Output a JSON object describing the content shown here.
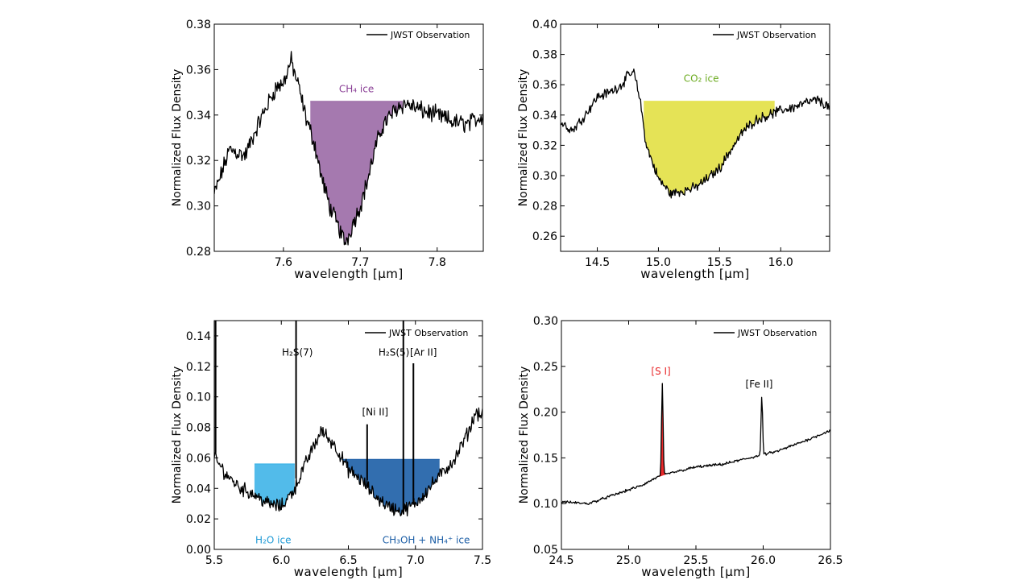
{
  "figure": {
    "legend_label": "JWST Observation",
    "xlabel": "wavelength [μm]",
    "ylabel": "Normalized Flux Density"
  },
  "chart_data": [
    {
      "type": "line",
      "panel": "top-left",
      "title": "",
      "xlabel": "wavelength [μm]",
      "ylabel": "Normalized Flux Density",
      "xlim": [
        7.51,
        7.86
      ],
      "ylim": [
        0.28,
        0.38
      ],
      "xticks": [
        7.6,
        7.7,
        7.8
      ],
      "yticks": [
        0.28,
        0.3,
        0.32,
        0.34,
        0.36,
        0.38
      ],
      "xtick_labels": [
        "7.6",
        "7.7",
        "7.8"
      ],
      "ytick_labels": [
        "0.28",
        "0.30",
        "0.32",
        "0.34",
        "0.36",
        "0.38"
      ],
      "legend": {
        "label": "JWST Observation",
        "position": "top-right"
      },
      "series": [
        {
          "name": "JWST Observation",
          "color": "#000000",
          "x": [
            7.51,
            7.53,
            7.55,
            7.57,
            7.59,
            7.6,
            7.61,
            7.62,
            7.63,
            7.64,
            7.65,
            7.66,
            7.67,
            7.675,
            7.68,
            7.685,
            7.69,
            7.7,
            7.71,
            7.72,
            7.73,
            7.74,
            7.75,
            7.76,
            7.78,
            7.8,
            7.82,
            7.84,
            7.86
          ],
          "y": [
            0.305,
            0.325,
            0.322,
            0.338,
            0.352,
            0.354,
            0.364,
            0.352,
            0.338,
            0.328,
            0.312,
            0.3,
            0.292,
            0.288,
            0.284,
            0.287,
            0.292,
            0.3,
            0.312,
            0.326,
            0.336,
            0.34,
            0.344,
            0.345,
            0.342,
            0.34,
            0.337,
            0.336,
            0.34
          ],
          "noise": 0.006
        }
      ],
      "fills": [
        {
          "label": "CH₄ ice",
          "color": "#9b6aa6",
          "text_color": "#8a3f96",
          "x_range": [
            7.635,
            7.755
          ],
          "continuum": 0.346
        }
      ],
      "annotations": [
        {
          "text": "CH₄ ice",
          "x": 7.695,
          "y": 0.35,
          "color": "#8a3f96"
        }
      ]
    },
    {
      "type": "line",
      "panel": "top-right",
      "title": "",
      "xlabel": "wavelength [μm]",
      "ylabel": "Normalized Flux Density",
      "xlim": [
        14.2,
        16.4
      ],
      "ylim": [
        0.25,
        0.4
      ],
      "xticks": [
        14.5,
        15.0,
        15.5,
        16.0
      ],
      "yticks": [
        0.26,
        0.28,
        0.3,
        0.32,
        0.34,
        0.36,
        0.38,
        0.4
      ],
      "xtick_labels": [
        "14.5",
        "15.0",
        "15.5",
        "16.0"
      ],
      "ytick_labels": [
        "0.26",
        "0.28",
        "0.30",
        "0.32",
        "0.34",
        "0.36",
        "0.38",
        "0.40"
      ],
      "legend": {
        "label": "JWST Observation",
        "position": "top-right"
      },
      "series": [
        {
          "name": "JWST Observation",
          "color": "#000000",
          "x": [
            14.2,
            14.3,
            14.4,
            14.5,
            14.6,
            14.7,
            14.75,
            14.8,
            14.85,
            14.9,
            15.0,
            15.1,
            15.2,
            15.3,
            15.4,
            15.5,
            15.6,
            15.7,
            15.8,
            15.9,
            16.0,
            16.1,
            16.2,
            16.3,
            16.4
          ],
          "y": [
            0.335,
            0.33,
            0.34,
            0.352,
            0.355,
            0.36,
            0.366,
            0.368,
            0.35,
            0.32,
            0.298,
            0.288,
            0.29,
            0.292,
            0.298,
            0.305,
            0.318,
            0.33,
            0.337,
            0.34,
            0.343,
            0.345,
            0.348,
            0.35,
            0.345
          ],
          "noise": 0.005
        }
      ],
      "fills": [
        {
          "label": "CO₂ ice",
          "color": "#e2e044",
          "text_color": "#6aaa1e",
          "x_range": [
            14.88,
            15.95
          ],
          "continuum": 0.349
        }
      ],
      "annotations": [
        {
          "text": "CO₂ ice",
          "x": 15.35,
          "y": 0.362,
          "color": "#6aaa1e"
        }
      ]
    },
    {
      "type": "line",
      "panel": "bottom-left",
      "title": "",
      "xlabel": "wavelength [μm]",
      "ylabel": "Normalized Flux Density",
      "xlim": [
        5.5,
        7.5
      ],
      "ylim": [
        0.0,
        0.15
      ],
      "xticks": [
        5.5,
        6.0,
        6.5,
        7.0,
        7.5
      ],
      "yticks": [
        0.0,
        0.02,
        0.04,
        0.06,
        0.08,
        0.1,
        0.12,
        0.14
      ],
      "xtick_labels": [
        "5.5",
        "6.0",
        "6.5",
        "7.0",
        "7.5"
      ],
      "ytick_labels": [
        "0.00",
        "0.02",
        "0.04",
        "0.06",
        "0.08",
        "0.10",
        "0.12",
        "0.14"
      ],
      "legend": {
        "label": "JWST Observation",
        "position": "top-right"
      },
      "series": [
        {
          "name": "JWST Observation",
          "color": "#000000",
          "x": [
            5.5,
            5.6,
            5.7,
            5.8,
            5.9,
            6.0,
            6.1,
            6.2,
            6.3,
            6.4,
            6.5,
            6.6,
            6.7,
            6.8,
            6.9,
            7.0,
            7.1,
            7.2,
            7.3,
            7.4,
            7.45,
            7.5
          ],
          "y": [
            0.06,
            0.048,
            0.04,
            0.036,
            0.03,
            0.028,
            0.04,
            0.06,
            0.078,
            0.068,
            0.052,
            0.045,
            0.035,
            0.028,
            0.025,
            0.03,
            0.04,
            0.05,
            0.06,
            0.078,
            0.09,
            0.088
          ],
          "noise": 0.007
        }
      ],
      "fills": [
        {
          "label": "H₂O ice",
          "color": "#3fb4e8",
          "text_color": "#1f9ad6",
          "x_range": [
            5.8,
            6.1
          ],
          "continuum": 0.056
        },
        {
          "label": "CH₃OH + NH₄⁺ ice",
          "color": "#1c5ea6",
          "text_color": "#1c5ea6",
          "x_range": [
            6.45,
            7.18
          ],
          "continuum": 0.059
        }
      ],
      "lines": [
        {
          "label": "H₂S(7)",
          "x": 6.11,
          "top": 0.15
        },
        {
          "label": "[Ni II]",
          "x": 6.64,
          "top": 0.082
        },
        {
          "label": "H₂S(5)",
          "x": 6.91,
          "top": 0.15
        },
        {
          "label": "[Ar II]",
          "x": 6.985,
          "top": 0.122
        },
        {
          "label": "",
          "x": 5.51,
          "top": 0.15
        }
      ],
      "annotations": [
        {
          "text": "H₂S(7)",
          "x": 6.12,
          "y": 0.127,
          "color": "#000000"
        },
        {
          "text": "H₂S(5)",
          "x": 6.84,
          "y": 0.127,
          "color": "#000000"
        },
        {
          "text": "[Ar II]",
          "x": 7.06,
          "y": 0.127,
          "color": "#000000"
        },
        {
          "text": "[Ni II]",
          "x": 6.7,
          "y": 0.088,
          "color": "#000000"
        },
        {
          "text": "H₂O ice",
          "x": 5.94,
          "y": 0.004,
          "color": "#1f9ad6"
        },
        {
          "text": "CH₃OH + NH₄⁺ ice",
          "x": 7.08,
          "y": 0.004,
          "color": "#1c5ea6"
        }
      ]
    },
    {
      "type": "line",
      "panel": "bottom-right",
      "title": "",
      "xlabel": "wavelength [μm]",
      "ylabel": "Normalized Flux Density",
      "xlim": [
        24.5,
        26.5
      ],
      "ylim": [
        0.05,
        0.3
      ],
      "xticks": [
        24.5,
        25.0,
        25.5,
        26.0,
        26.5
      ],
      "yticks": [
        0.05,
        0.1,
        0.15,
        0.2,
        0.25,
        0.3
      ],
      "xtick_labels": [
        "24.5",
        "25.0",
        "25.5",
        "26.0",
        "26.5"
      ],
      "ytick_labels": [
        "0.05",
        "0.10",
        "0.15",
        "0.20",
        "0.25",
        "0.30"
      ],
      "legend": {
        "label": "JWST Observation",
        "position": "top-right"
      },
      "series": [
        {
          "name": "JWST Observation",
          "color": "#000000",
          "x": [
            24.5,
            24.7,
            24.9,
            25.1,
            25.2,
            25.3,
            25.5,
            25.7,
            25.9,
            26.1,
            26.3,
            26.5
          ],
          "y": [
            0.102,
            0.1,
            0.11,
            0.12,
            0.128,
            0.133,
            0.14,
            0.143,
            0.15,
            0.157,
            0.168,
            0.18
          ],
          "noise": 0.0022
        }
      ],
      "peaks": [
        {
          "label": "[S I]",
          "x": 25.25,
          "height": 0.231,
          "color": "#e8282a",
          "fill": true
        },
        {
          "label": "[Fe II]",
          "x": 25.99,
          "height": 0.217,
          "color": "#000000",
          "fill": false
        }
      ],
      "annotations": [
        {
          "text": "[S I]",
          "x": 25.24,
          "y": 0.241,
          "color": "#e8282a"
        },
        {
          "text": "[Fe II]",
          "x": 25.97,
          "y": 0.227,
          "color": "#000000"
        }
      ]
    }
  ]
}
